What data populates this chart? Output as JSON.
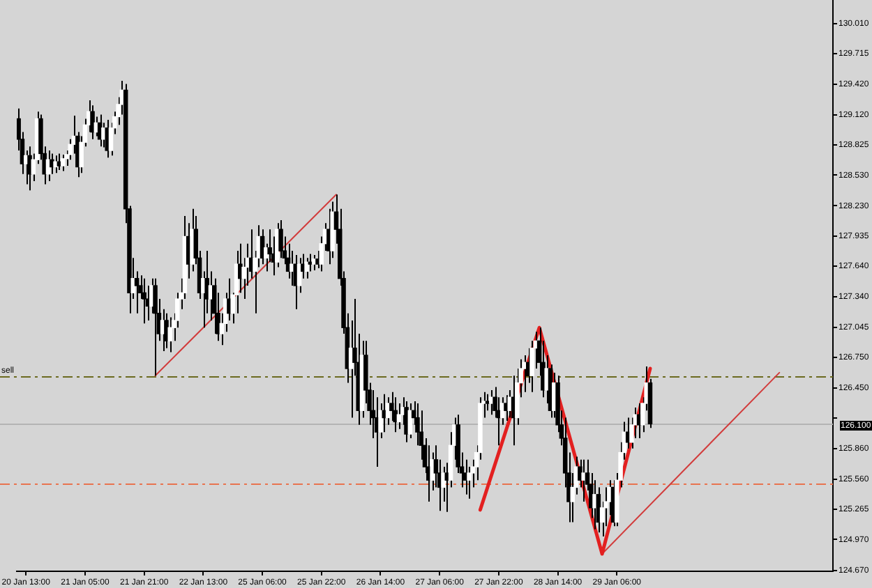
{
  "chart_data": {
    "type": "candlestick",
    "color": "#000000",
    "categories": [
      null,
      null,
      "20 Jan 13:00",
      null,
      null,
      null,
      null,
      null,
      null,
      null,
      null,
      null,
      null,
      null,
      null,
      null,
      null,
      null,
      "21 Jan 05:00",
      null,
      null,
      null,
      null,
      null,
      null,
      null,
      null,
      null,
      null,
      null,
      null,
      null,
      null,
      null,
      "21 Jan 21:00",
      null,
      null,
      null,
      null,
      null,
      null,
      null,
      null,
      null,
      null,
      null,
      null,
      null,
      null,
      null,
      "22 Jan 13:00",
      null,
      null,
      null,
      null,
      null,
      null,
      null,
      null,
      null,
      null,
      null,
      null,
      null,
      null,
      null,
      "25 Jan 06:00",
      null,
      null,
      null,
      null,
      null,
      null,
      null,
      null,
      null,
      null,
      null,
      null,
      null,
      null,
      null,
      "25 Jan 22:00",
      null,
      null,
      null,
      null,
      null,
      null,
      null,
      null,
      null,
      null,
      null,
      null,
      null,
      null,
      null,
      "26 Jan 14:00",
      null,
      null,
      null,
      null,
      null,
      null,
      null,
      null,
      null,
      null,
      null,
      null,
      null,
      null,
      null,
      "27 Jan 06:00",
      null,
      null,
      null,
      null,
      null,
      null,
      null,
      null,
      null,
      null,
      null,
      null,
      null,
      null,
      null,
      "27 Jan 22:00",
      null,
      null,
      null,
      null,
      null,
      null,
      null,
      null,
      null,
      null,
      null,
      null,
      null,
      null,
      null,
      "28 Jan 14:00",
      null,
      null,
      null,
      null,
      null,
      null,
      null,
      null,
      null,
      null,
      null,
      null,
      null,
      null,
      null,
      "29 Jan 06:00",
      null,
      null,
      null,
      null,
      null,
      null,
      null,
      null,
      null,
      null,
      null,
      null,
      null,
      null,
      null,
      null,
      null,
      null,
      null,
      null,
      null,
      null,
      null,
      null,
      null,
      null,
      null,
      null,
      null,
      null,
      null,
      null,
      null,
      null,
      null,
      null,
      null,
      null,
      null,
      null,
      null,
      null,
      null,
      null,
      null,
      null,
      null,
      null,
      null,
      null,
      null,
      null,
      null,
      null,
      null,
      null,
      null,
      null
    ],
    "ohlc": [
      [
        129.08,
        129.18,
        128.77,
        128.88
      ],
      [
        128.88,
        128.95,
        128.54,
        128.64
      ],
      [
        128.64,
        128.77,
        128.44,
        128.72
      ],
      [
        128.72,
        128.81,
        128.38,
        128.54
      ],
      [
        128.54,
        128.74,
        128.47,
        128.68
      ],
      [
        128.68,
        129.15,
        128.64,
        129.08
      ],
      [
        129.08,
        129.12,
        128.68,
        128.74
      ],
      [
        128.74,
        128.81,
        128.44,
        128.54
      ],
      [
        128.54,
        128.77,
        128.47,
        128.68
      ],
      [
        128.68,
        128.74,
        128.54,
        128.61
      ],
      [
        128.61,
        128.72,
        128.55,
        128.66
      ],
      [
        128.66,
        128.74,
        128.58,
        128.62
      ],
      [
        128.62,
        128.73,
        128.57,
        128.69
      ],
      [
        128.69,
        128.77,
        128.62,
        128.73
      ],
      [
        128.73,
        128.88,
        128.68,
        128.83
      ],
      [
        128.83,
        129.11,
        128.74,
        128.91
      ],
      [
        128.91,
        128.95,
        128.51,
        128.61
      ],
      [
        128.61,
        128.91,
        128.55,
        128.85
      ],
      [
        128.85,
        129.08,
        128.81,
        129.02
      ],
      [
        129.02,
        129.26,
        128.95,
        129.15
      ],
      [
        129.15,
        129.21,
        128.88,
        128.95
      ],
      [
        128.95,
        129.1,
        128.91,
        129.04
      ],
      [
        129.04,
        129.12,
        128.81,
        128.88
      ],
      [
        128.88,
        129.04,
        128.8,
        128.99
      ],
      [
        128.99,
        129.07,
        128.7,
        128.77
      ],
      [
        128.77,
        129.04,
        128.72,
        128.99
      ],
      [
        128.99,
        129.15,
        128.93,
        129.1
      ],
      [
        129.1,
        129.29,
        129.02,
        129.22
      ],
      [
        129.22,
        129.45,
        129.12,
        129.36
      ],
      [
        129.36,
        129.42,
        128.06,
        128.2
      ],
      [
        128.2,
        128.23,
        127.18,
        127.38
      ],
      [
        127.38,
        127.72,
        127.32,
        127.52
      ],
      [
        127.52,
        127.59,
        127.18,
        127.45
      ],
      [
        127.45,
        127.55,
        127.32,
        127.38
      ],
      [
        127.38,
        127.52,
        127.08,
        127.32
      ],
      [
        127.32,
        127.45,
        127.11,
        127.25
      ],
      [
        127.25,
        127.52,
        127.18,
        127.45
      ],
      [
        127.45,
        127.52,
        126.57,
        127.18
      ],
      [
        127.18,
        127.32,
        126.91,
        126.98
      ],
      [
        126.98,
        127.22,
        126.81,
        127.11
      ],
      [
        127.11,
        127.18,
        126.84,
        126.91
      ],
      [
        126.91,
        127.14,
        126.8,
        127.04
      ],
      [
        127.04,
        127.18,
        126.91,
        127.11
      ],
      [
        127.11,
        127.38,
        127.04,
        127.32
      ],
      [
        127.32,
        127.52,
        127.22,
        127.38
      ],
      [
        127.38,
        128.13,
        127.32,
        127.93
      ],
      [
        127.93,
        128.06,
        127.52,
        127.66
      ],
      [
        127.66,
        128.2,
        127.59,
        128.0
      ],
      [
        128.0,
        128.13,
        127.66,
        127.72
      ],
      [
        127.72,
        127.79,
        127.32,
        127.38
      ],
      [
        127.38,
        127.59,
        127.04,
        127.52
      ],
      [
        127.52,
        127.79,
        127.18,
        127.32
      ],
      [
        127.32,
        127.59,
        127.11,
        127.45
      ],
      [
        127.45,
        127.52,
        126.98,
        127.18
      ],
      [
        127.18,
        127.38,
        126.91,
        126.98
      ],
      [
        126.98,
        127.18,
        126.87,
        127.08
      ],
      [
        127.08,
        127.38,
        127.0,
        127.32
      ],
      [
        127.32,
        127.52,
        127.11,
        127.18
      ],
      [
        127.18,
        127.38,
        127.08,
        127.36
      ],
      [
        127.36,
        127.79,
        127.18,
        127.66
      ],
      [
        127.66,
        127.86,
        127.38,
        127.52
      ],
      [
        127.52,
        127.72,
        127.32,
        127.63
      ],
      [
        127.63,
        127.86,
        127.45,
        127.72
      ],
      [
        127.72,
        128.0,
        127.52,
        127.59
      ],
      [
        127.59,
        127.79,
        127.18,
        127.72
      ],
      [
        127.72,
        128.04,
        127.63,
        127.93
      ],
      [
        127.93,
        128.0,
        127.66,
        127.72
      ],
      [
        127.72,
        127.86,
        127.59,
        127.82
      ],
      [
        127.82,
        128.0,
        127.68,
        127.76
      ],
      [
        127.76,
        127.93,
        127.55,
        127.68
      ],
      [
        127.68,
        128.06,
        127.63,
        128.0
      ],
      [
        128.0,
        128.09,
        127.72,
        127.79
      ],
      [
        127.79,
        127.93,
        127.66,
        127.72
      ],
      [
        127.72,
        127.86,
        127.52,
        127.59
      ],
      [
        127.59,
        127.79,
        127.45,
        127.66
      ],
      [
        127.66,
        127.75,
        127.22,
        127.45
      ],
      [
        127.45,
        127.72,
        127.38,
        127.66
      ],
      [
        127.66,
        127.76,
        127.52,
        127.59
      ],
      [
        127.59,
        127.72,
        127.52,
        127.68
      ],
      [
        127.68,
        127.76,
        127.59,
        127.66
      ],
      [
        127.66,
        127.75,
        127.6,
        127.71
      ],
      [
        127.71,
        127.79,
        127.62,
        127.66
      ],
      [
        127.66,
        127.93,
        127.59,
        127.86
      ],
      [
        127.86,
        128.06,
        127.79,
        128.0
      ],
      [
        128.0,
        128.2,
        127.66,
        127.79
      ],
      [
        127.79,
        128.27,
        127.72,
        128.17
      ],
      [
        128.17,
        128.34,
        127.86,
        128.0
      ],
      [
        128.0,
        128.2,
        127.45,
        127.52
      ],
      [
        127.52,
        127.59,
        126.98,
        127.04
      ],
      [
        127.04,
        127.18,
        126.5,
        126.64
      ],
      [
        126.64,
        127.11,
        126.16,
        126.84
      ],
      [
        126.84,
        127.32,
        126.57,
        126.7
      ],
      [
        126.7,
        126.98,
        126.09,
        126.23
      ],
      [
        126.23,
        126.91,
        126.16,
        126.77
      ],
      [
        126.77,
        126.91,
        126.3,
        126.43
      ],
      [
        126.43,
        126.5,
        126.09,
        126.23
      ],
      [
        126.23,
        126.43,
        125.96,
        126.16
      ],
      [
        126.16,
        126.36,
        125.68,
        126.02
      ],
      [
        126.02,
        126.3,
        125.96,
        126.23
      ],
      [
        126.23,
        126.39,
        126.02,
        126.16
      ],
      [
        126.16,
        126.36,
        126.09,
        126.3
      ],
      [
        126.3,
        126.41,
        126.13,
        126.23
      ],
      [
        126.23,
        126.36,
        126.02,
        126.12
      ],
      [
        126.12,
        126.3,
        126.05,
        126.19
      ],
      [
        126.19,
        126.36,
        126.09,
        126.26
      ],
      [
        126.26,
        126.32,
        125.92,
        126.0
      ],
      [
        126.0,
        126.3,
        125.96,
        126.23
      ],
      [
        126.23,
        126.32,
        126.09,
        126.16
      ],
      [
        126.16,
        126.3,
        125.89,
        126.02
      ],
      [
        126.02,
        126.23,
        125.75,
        125.89
      ],
      [
        125.89,
        125.96,
        125.62,
        125.68
      ],
      [
        125.68,
        125.89,
        125.34,
        125.55
      ],
      [
        125.55,
        125.82,
        125.45,
        125.75
      ],
      [
        125.75,
        125.89,
        125.48,
        125.62
      ],
      [
        125.62,
        125.75,
        125.25,
        125.48
      ],
      [
        125.48,
        125.68,
        125.34,
        125.62
      ],
      [
        125.62,
        125.72,
        125.24,
        125.55
      ],
      [
        125.55,
        126.02,
        125.48,
        125.89
      ],
      [
        125.89,
        126.16,
        125.75,
        126.09
      ],
      [
        126.09,
        126.19,
        125.62,
        125.68
      ],
      [
        125.68,
        125.82,
        125.48,
        125.62
      ],
      [
        125.62,
        125.75,
        125.41,
        125.55
      ],
      [
        125.55,
        125.68,
        125.37,
        125.62
      ],
      [
        125.62,
        125.75,
        125.48,
        125.68
      ],
      [
        125.68,
        125.89,
        125.55,
        125.82
      ],
      [
        125.82,
        126.36,
        125.75,
        126.3
      ],
      [
        126.3,
        126.41,
        126.16,
        126.32
      ],
      [
        126.32,
        126.39,
        126.23,
        126.3
      ],
      [
        126.3,
        126.43,
        126.19,
        126.36
      ],
      [
        126.36,
        126.46,
        126.16,
        126.23
      ],
      [
        126.23,
        126.36,
        125.89,
        126.16
      ],
      [
        126.16,
        126.36,
        126.09,
        126.3
      ],
      [
        126.3,
        126.38,
        126.13,
        126.23
      ],
      [
        126.23,
        126.43,
        126.16,
        126.36
      ],
      [
        126.36,
        126.57,
        125.89,
        126.16
      ],
      [
        126.16,
        126.64,
        126.09,
        126.5
      ],
      [
        126.5,
        126.73,
        126.36,
        126.64
      ],
      [
        126.64,
        126.77,
        126.41,
        126.7
      ],
      [
        126.7,
        126.84,
        126.5,
        126.57
      ],
      [
        126.57,
        126.91,
        126.41,
        126.84
      ],
      [
        126.84,
        127.0,
        126.64,
        126.91
      ],
      [
        126.91,
        127.04,
        126.57,
        126.7
      ],
      [
        126.7,
        126.91,
        126.36,
        126.43
      ],
      [
        126.43,
        126.77,
        126.3,
        126.64
      ],
      [
        126.64,
        126.68,
        126.16,
        126.23
      ],
      [
        126.23,
        126.6,
        126.16,
        126.5
      ],
      [
        126.5,
        126.57,
        126.02,
        126.09
      ],
      [
        126.09,
        126.23,
        125.89,
        125.96
      ],
      [
        125.96,
        126.16,
        125.48,
        125.62
      ],
      [
        125.62,
        125.82,
        125.14,
        125.34
      ],
      [
        125.34,
        125.62,
        125.14,
        125.48
      ],
      [
        125.48,
        125.78,
        125.41,
        125.68
      ],
      [
        125.68,
        125.75,
        125.48,
        125.55
      ],
      [
        125.55,
        125.75,
        125.34,
        125.62
      ],
      [
        125.62,
        125.75,
        125.45,
        125.51
      ],
      [
        125.51,
        125.62,
        125.18,
        125.28
      ],
      [
        125.28,
        125.55,
        125.07,
        125.41
      ],
      [
        125.41,
        125.48,
        125.04,
        125.14
      ],
      [
        125.14,
        125.34,
        125.0,
        125.28
      ],
      [
        125.28,
        125.48,
        125.1,
        125.34
      ],
      [
        125.34,
        125.55,
        125.21,
        125.48
      ],
      [
        125.48,
        125.55,
        125.1,
        125.14
      ],
      [
        125.14,
        125.62,
        125.1,
        125.55
      ],
      [
        125.55,
        125.92,
        125.48,
        125.82
      ],
      [
        125.82,
        126.12,
        125.75,
        126.02
      ],
      [
        126.02,
        126.16,
        125.86,
        125.92
      ],
      [
        125.92,
        126.16,
        125.86,
        126.09
      ],
      [
        126.09,
        126.26,
        125.96,
        126.19
      ],
      [
        126.19,
        126.3,
        125.96,
        126.09
      ],
      [
        126.09,
        126.36,
        126.02,
        126.3
      ],
      [
        126.3,
        126.66,
        126.23,
        126.5
      ],
      [
        126.5,
        126.54,
        126.06,
        126.1
      ],
      null,
      null,
      null,
      null,
      null,
      null,
      null,
      null,
      null,
      null,
      null,
      null,
      null,
      null,
      null,
      null,
      null,
      null,
      null,
      null,
      null,
      null,
      null,
      null,
      null,
      null,
      null,
      null,
      null,
      null,
      null,
      null,
      null,
      null,
      null,
      null,
      null,
      null,
      null,
      null,
      null,
      null,
      null,
      null,
      null,
      null,
      null,
      null,
      null
    ],
    "colors": [
      "#000000",
      "#000000",
      "#ffffff",
      "#000000",
      "#ffffff",
      "#ffffff",
      "#000000",
      "#000000",
      "#ffffff",
      "#000000",
      "#ffffff",
      "#000000",
      "#ffffff",
      "#ffffff",
      "#ffffff",
      "#ffffff",
      "#000000",
      "#ffffff",
      "#ffffff",
      "#ffffff",
      "#000000",
      "#ffffff",
      "#000000",
      "#ffffff",
      "#000000",
      "#ffffff",
      "#ffffff",
      "#ffffff",
      "#ffffff",
      "#000000",
      "#000000",
      "#ffffff",
      "#000000",
      "#000000",
      "#000000",
      "#000000",
      "#ffffff",
      "#000000",
      "#000000",
      "#ffffff",
      "#000000",
      "#ffffff",
      "#ffffff",
      "#ffffff",
      "#ffffff",
      "#ffffff",
      "#000000",
      "#ffffff",
      "#000000",
      "#000000",
      "#ffffff",
      "#000000",
      "#ffffff",
      "#000000",
      "#000000",
      "#ffffff",
      "#ffffff",
      "#000000",
      "#ffffff",
      "#ffffff",
      "#000000",
      "#ffffff",
      "#ffffff",
      "#000000",
      "#ffffff",
      "#ffffff",
      "#000000",
      "#ffffff",
      "#000000",
      "#000000",
      "#ffffff",
      "#000000",
      "#000000",
      "#000000",
      "#ffffff",
      "#000000",
      "#ffffff",
      "#000000",
      "#ffffff",
      "#000000",
      "#ffffff",
      "#000000",
      "#ffffff",
      "#ffffff",
      "#000000",
      "#ffffff",
      "#000000",
      "#000000",
      "#000000",
      "#000000",
      "#ffffff",
      "#000000",
      "#000000",
      "#ffffff",
      "#000000",
      "#000000",
      "#000000",
      "#000000",
      "#ffffff",
      "#000000",
      "#ffffff",
      "#000000",
      "#000000",
      "#ffffff",
      "#ffffff",
      "#000000",
      "#ffffff",
      "#000000",
      "#000000",
      "#000000",
      "#000000",
      "#000000",
      "#ffffff",
      "#000000",
      "#000000",
      "#ffffff",
      "#000000",
      "#ffffff",
      "#ffffff",
      "#000000",
      "#000000",
      "#000000",
      "#ffffff",
      "#ffffff",
      "#ffffff",
      "#ffffff",
      "#ffffff",
      "#000000",
      "#ffffff",
      "#000000",
      "#000000",
      "#ffffff",
      "#000000",
      "#ffffff",
      "#000000",
      "#ffffff",
      "#ffffff",
      "#ffffff",
      "#000000",
      "#ffffff",
      "#ffffff",
      "#000000",
      "#000000",
      "#ffffff",
      "#000000",
      "#ffffff",
      "#000000",
      "#000000",
      "#000000",
      "#000000",
      "#ffffff",
      "#ffffff",
      "#000000",
      "#ffffff",
      "#000000",
      "#000000",
      "#ffffff",
      "#000000",
      "#ffffff",
      "#ffffff",
      "#ffffff",
      "#000000",
      "#ffffff",
      "#ffffff",
      "#ffffff",
      "#000000",
      "#ffffff",
      "#ffffff",
      "#000000",
      "#ffffff",
      "#ffffff",
      "#000000",
      null,
      null,
      null,
      null,
      null,
      null,
      null,
      null,
      null,
      null,
      null,
      null,
      null,
      null,
      null,
      null,
      null,
      null,
      null,
      null,
      null,
      null,
      null,
      null,
      null,
      null,
      null,
      null,
      null,
      null,
      null,
      null,
      null,
      null,
      null,
      null,
      null,
      null,
      null,
      null,
      null,
      null,
      null,
      null,
      null,
      null,
      null,
      null,
      null
    ],
    "series": [
      {
        "type": "line",
        "color": "#e32020",
        "values": [
          null,
          null,
          null,
          null,
          null,
          null,
          null,
          null,
          null,
          null,
          null,
          null,
          null,
          null,
          null,
          null,
          null,
          null,
          null,
          null,
          null,
          null,
          null,
          null,
          null,
          null,
          null,
          null,
          null,
          null,
          null,
          null,
          null,
          null,
          null,
          null,
          null,
          null,
          null,
          null,
          null,
          null,
          null,
          null,
          null,
          null,
          null,
          null,
          null,
          null,
          null,
          null,
          null,
          null,
          null,
          null,
          null,
          null,
          null,
          null,
          null,
          null,
          null,
          null,
          null,
          null,
          null,
          null,
          null,
          null,
          null,
          null,
          null,
          null,
          null,
          null,
          null,
          null,
          null,
          null,
          null,
          null,
          null,
          null,
          null,
          null,
          null,
          null,
          null,
          null,
          null,
          null,
          null,
          null,
          null,
          null,
          null,
          null,
          null,
          null,
          null,
          null,
          null,
          null,
          null,
          null,
          null,
          null,
          null,
          null,
          null,
          null,
          null,
          null,
          null,
          null,
          null,
          null,
          null,
          null,
          null,
          null,
          null,
          null,
          null,
          125.26,
          null,
          null,
          null,
          null,
          null,
          null,
          null,
          null,
          null,
          null,
          null,
          null,
          null,
          null,
          null,
          127.04,
          null,
          null,
          null,
          null,
          null,
          null,
          null,
          null,
          null,
          null,
          null,
          null,
          null,
          null,
          null,
          null,
          124.83,
          null,
          null,
          null,
          null,
          null,
          null,
          null,
          null,
          null,
          null,
          null,
          null,
          126.64,
          null,
          null,
          null,
          null,
          null,
          null,
          null,
          null,
          null,
          null,
          null,
          null,
          null,
          null,
          null,
          null,
          null,
          null,
          null,
          null,
          null,
          null,
          null,
          null,
          null,
          null,
          null,
          null,
          null,
          null,
          null,
          null,
          null,
          null,
          null,
          null,
          null,
          null,
          null,
          null,
          null,
          null,
          null,
          null,
          null,
          null,
          null,
          null,
          null
        ]
      },
      {
        "type": "line",
        "color": "#d23c3c",
        "values": [
          null,
          null,
          null,
          null,
          null,
          null,
          null,
          null,
          null,
          null,
          null,
          null,
          null,
          null,
          null,
          null,
          null,
          null,
          null,
          null,
          null,
          null,
          null,
          null,
          null,
          null,
          null,
          null,
          null,
          null,
          null,
          null,
          null,
          null,
          null,
          null,
          null,
          126.57,
          null,
          null,
          null,
          null,
          null,
          null,
          null,
          null,
          null,
          null,
          null,
          null,
          null,
          null,
          null,
          null,
          null,
          null,
          null,
          null,
          null,
          null,
          null,
          null,
          null,
          null,
          null,
          null,
          null,
          null,
          null,
          null,
          null,
          null,
          null,
          null,
          null,
          null,
          null,
          null,
          null,
          null,
          null,
          null,
          null,
          null,
          null,
          null,
          128.34,
          null,
          null,
          null,
          null,
          null,
          null,
          null,
          null,
          null,
          null,
          null,
          null,
          null,
          null,
          null,
          null,
          null,
          null,
          null,
          null,
          null,
          null,
          null,
          null,
          null,
          null,
          null,
          null,
          null,
          null,
          null,
          null,
          null,
          null,
          null,
          null,
          null,
          null,
          null,
          null,
          null,
          null,
          null,
          null,
          null,
          null,
          null,
          null,
          null,
          null,
          null,
          null,
          null,
          null,
          null,
          null,
          null,
          null,
          null,
          null,
          null,
          null,
          null,
          null,
          null,
          null,
          null,
          null,
          null,
          null,
          null,
          null,
          null,
          null,
          null,
          null,
          null,
          null,
          null,
          null,
          null,
          null,
          null,
          null,
          null,
          null,
          null,
          null,
          null,
          null,
          null,
          null,
          null,
          null,
          null,
          null,
          null,
          null,
          null,
          null,
          null,
          null,
          null,
          null,
          null,
          null,
          null,
          null,
          null,
          null,
          null,
          null,
          null,
          null,
          null,
          null,
          null,
          null,
          null,
          null,
          null,
          null,
          null,
          null,
          null,
          null,
          null,
          null,
          null,
          null,
          null,
          null,
          null,
          null
        ]
      },
      {
        "type": "line",
        "color": "#d23c3c",
        "values": [
          null,
          null,
          null,
          null,
          null,
          null,
          null,
          null,
          null,
          null,
          null,
          null,
          null,
          null,
          null,
          null,
          null,
          null,
          null,
          null,
          null,
          null,
          null,
          null,
          null,
          null,
          null,
          null,
          null,
          null,
          null,
          null,
          null,
          null,
          null,
          null,
          null,
          null,
          null,
          null,
          null,
          null,
          null,
          null,
          null,
          null,
          null,
          null,
          null,
          null,
          null,
          null,
          null,
          null,
          null,
          null,
          null,
          null,
          null,
          null,
          null,
          null,
          null,
          null,
          null,
          null,
          null,
          null,
          null,
          null,
          null,
          null,
          null,
          null,
          null,
          null,
          null,
          null,
          null,
          null,
          null,
          null,
          null,
          null,
          null,
          null,
          null,
          null,
          null,
          null,
          null,
          null,
          null,
          null,
          null,
          null,
          null,
          null,
          null,
          null,
          null,
          null,
          null,
          null,
          null,
          null,
          null,
          null,
          null,
          null,
          null,
          null,
          null,
          null,
          null,
          null,
          null,
          null,
          null,
          null,
          null,
          null,
          null,
          null,
          null,
          null,
          null,
          null,
          null,
          null,
          null,
          null,
          null,
          null,
          null,
          null,
          null,
          null,
          null,
          null,
          null,
          null,
          null,
          null,
          null,
          null,
          null,
          null,
          null,
          null,
          null,
          null,
          null,
          null,
          null,
          null,
          null,
          null,
          124.83,
          null,
          null,
          null,
          null,
          null,
          null,
          null,
          null,
          null,
          null,
          null,
          null,
          null,
          null,
          null,
          null,
          null,
          null,
          null,
          null,
          null,
          null,
          null,
          null,
          null,
          null,
          null,
          null,
          null,
          null,
          null,
          null,
          null,
          null,
          null,
          null,
          null,
          null,
          null,
          null,
          null,
          null,
          null,
          null,
          null,
          null,
          null,
          126.6,
          null,
          null,
          null,
          null,
          null,
          null,
          null,
          null,
          null,
          null,
          null,
          null,
          null,
          null
        ]
      }
    ],
    "ylim": [
      124.66,
      130.24
    ],
    "yticks": [
      {
        "value": 130.01,
        "label": "130.010"
      },
      {
        "value": 129.715,
        "label": "129.715"
      },
      {
        "value": 129.42,
        "label": "129.420"
      },
      {
        "value": 129.12,
        "label": "129.120"
      },
      {
        "value": 128.825,
        "label": "128.825"
      },
      {
        "value": 128.53,
        "label": "128.530"
      },
      {
        "value": 128.23,
        "label": "128.230"
      },
      {
        "value": 127.935,
        "label": "127.935"
      },
      {
        "value": 127.64,
        "label": "127.640"
      },
      {
        "value": 127.34,
        "label": "127.340"
      },
      {
        "value": 127.045,
        "label": "127.045"
      },
      {
        "value": 126.75,
        "label": "126.750"
      },
      {
        "value": 126.45,
        "label": "126.450"
      },
      {
        "value": 126.155,
        "label": null
      },
      {
        "value": 125.86,
        "label": "125.860"
      },
      {
        "value": 125.56,
        "label": "125.560"
      },
      {
        "value": 125.265,
        "label": "125.265"
      },
      {
        "value": 124.97,
        "label": "124.970"
      },
      {
        "value": 124.67,
        "label": "124.670"
      }
    ],
    "ref_lines": [
      {
        "axis": "y",
        "value": 126.57,
        "label": "sell",
        "color": "#6b6a1f",
        "line_style": "dashed"
      },
      {
        "axis": "y",
        "value": 125.52,
        "color": "#e8734f",
        "line_style": "dashed"
      },
      {
        "axis": "y",
        "value": 126.1,
        "label": "126.100",
        "color": "#b4b4b4",
        "line_style": "solid"
      }
    ]
  }
}
